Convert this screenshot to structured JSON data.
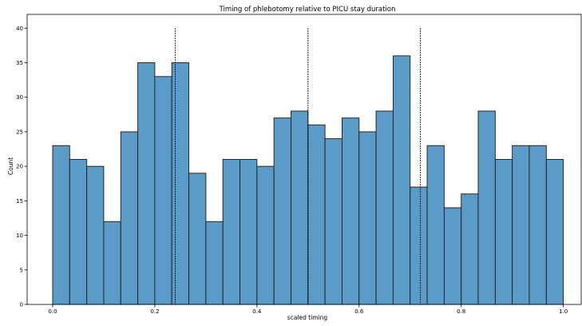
{
  "chart_data": {
    "type": "bar",
    "title": "Timing of phlebotomy relative to PICU stay duration",
    "xlabel": "scaled timing",
    "ylabel": "Count",
    "xlim": [
      -0.05,
      1.035
    ],
    "ylim": [
      0,
      42
    ],
    "bin_edges": [
      0.0,
      0.0333,
      0.0667,
      0.1,
      0.1333,
      0.1667,
      0.2,
      0.2333,
      0.2667,
      0.3,
      0.3333,
      0.3667,
      0.4,
      0.4333,
      0.4667,
      0.5,
      0.5333,
      0.5667,
      0.6,
      0.6333,
      0.6667,
      0.7,
      0.7333,
      0.7667,
      0.8,
      0.8333,
      0.8667,
      0.9,
      0.9333,
      0.9667,
      1.0
    ],
    "values": [
      23,
      21,
      20,
      12,
      25,
      35,
      33,
      35,
      19,
      12,
      21,
      21,
      20,
      27,
      28,
      26,
      24,
      27,
      25,
      28,
      36,
      17,
      23,
      14,
      16,
      28,
      21,
      23,
      23,
      21
    ],
    "reference_lines_x": [
      0.24,
      0.5,
      0.72
    ],
    "xticks": [
      0.0,
      0.2,
      0.4,
      0.6,
      0.8,
      1.0
    ],
    "xtick_labels": [
      "0.0",
      "0.2",
      "0.4",
      "0.6",
      "0.8",
      "1.0"
    ],
    "yticks": [
      0,
      5,
      10,
      15,
      20,
      25,
      30,
      35,
      40
    ],
    "ytick_labels": [
      "0",
      "5",
      "10",
      "15",
      "20",
      "25",
      "30",
      "35",
      "40"
    ],
    "grid": false,
    "bar_color": "#5a9bc8",
    "edge_color": "#1a1a1a"
  }
}
